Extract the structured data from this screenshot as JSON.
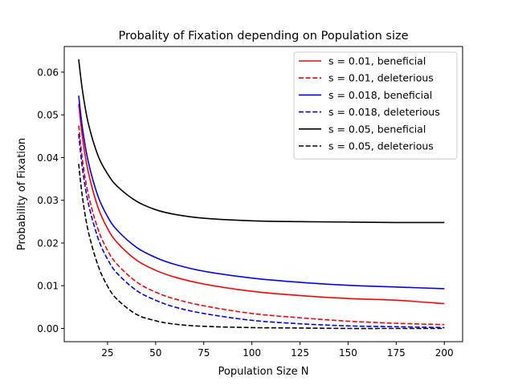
{
  "chart_data": {
    "type": "line",
    "title": "Probality of Fixation depending on Population size",
    "xlabel": "Population Size N",
    "ylabel": "Probability of Fixation",
    "xlim": [
      2.5,
      209.5
    ],
    "ylim": [
      -0.0031,
      0.066
    ],
    "xticks": [
      25,
      50,
      75,
      100,
      125,
      150,
      175,
      200
    ],
    "yticks": [
      0.0,
      0.01,
      0.02,
      0.03,
      0.04,
      0.05,
      0.06
    ],
    "ytick_labels": [
      "0.00",
      "0.01",
      "0.02",
      "0.03",
      "0.04",
      "0.05",
      "0.06"
    ],
    "grid": false,
    "legend_position": "top-right",
    "x": [
      10,
      12,
      15,
      20,
      25,
      30,
      40,
      50,
      60,
      75,
      100,
      125,
      150,
      175,
      200
    ],
    "series": [
      {
        "name": "s = 0.01, beneficial",
        "color": "#ff0000",
        "dash": "solid",
        "values": [
          0.0526,
          0.0446,
          0.0366,
          0.0284,
          0.0234,
          0.0201,
          0.016,
          0.0136,
          0.012,
          0.0104,
          0.0087,
          0.0077,
          0.007,
          0.0066,
          0.0058
        ]
      },
      {
        "name": "s = 0.01, deleterious",
        "color": "#ff0000",
        "dash": "dashed",
        "values": [
          0.0475,
          0.0393,
          0.0314,
          0.0233,
          0.0183,
          0.015,
          0.0109,
          0.0085,
          0.0069,
          0.0053,
          0.0035,
          0.0025,
          0.0017,
          0.0012,
          0.0009
        ]
      },
      {
        "name": "s = 0.018, beneficial",
        "color": "#0000ff",
        "dash": "solid",
        "values": [
          0.0545,
          0.0468,
          0.039,
          0.031,
          0.0262,
          0.023,
          0.019,
          0.0166,
          0.015,
          0.0134,
          0.0118,
          0.0108,
          0.0101,
          0.0097,
          0.0093
        ]
      },
      {
        "name": "s = 0.018, deleterious",
        "color": "#0000ff",
        "dash": "dashed",
        "values": [
          0.0455,
          0.0373,
          0.0293,
          0.0212,
          0.0162,
          0.0129,
          0.0089,
          0.0066,
          0.005,
          0.0035,
          0.0019,
          0.0011,
          0.0006,
          0.0004,
          0.0002
        ]
      },
      {
        "name": "s = 0.05, beneficial",
        "color": "#000000",
        "dash": "solid",
        "values": [
          0.063,
          0.0556,
          0.048,
          0.0405,
          0.0362,
          0.0333,
          0.0298,
          0.0278,
          0.0267,
          0.0258,
          0.0252,
          0.025,
          0.0249,
          0.0248,
          0.0248
        ]
      },
      {
        "name": "s = 0.05, deleterious",
        "color": "#000000",
        "dash": "dashed",
        "values": [
          0.0385,
          0.0306,
          0.0227,
          0.0148,
          0.0099,
          0.0068,
          0.0033,
          0.0018,
          0.001,
          0.0005,
          0.0002,
          0.0001,
          0.0,
          0.0,
          0.0
        ]
      }
    ]
  }
}
